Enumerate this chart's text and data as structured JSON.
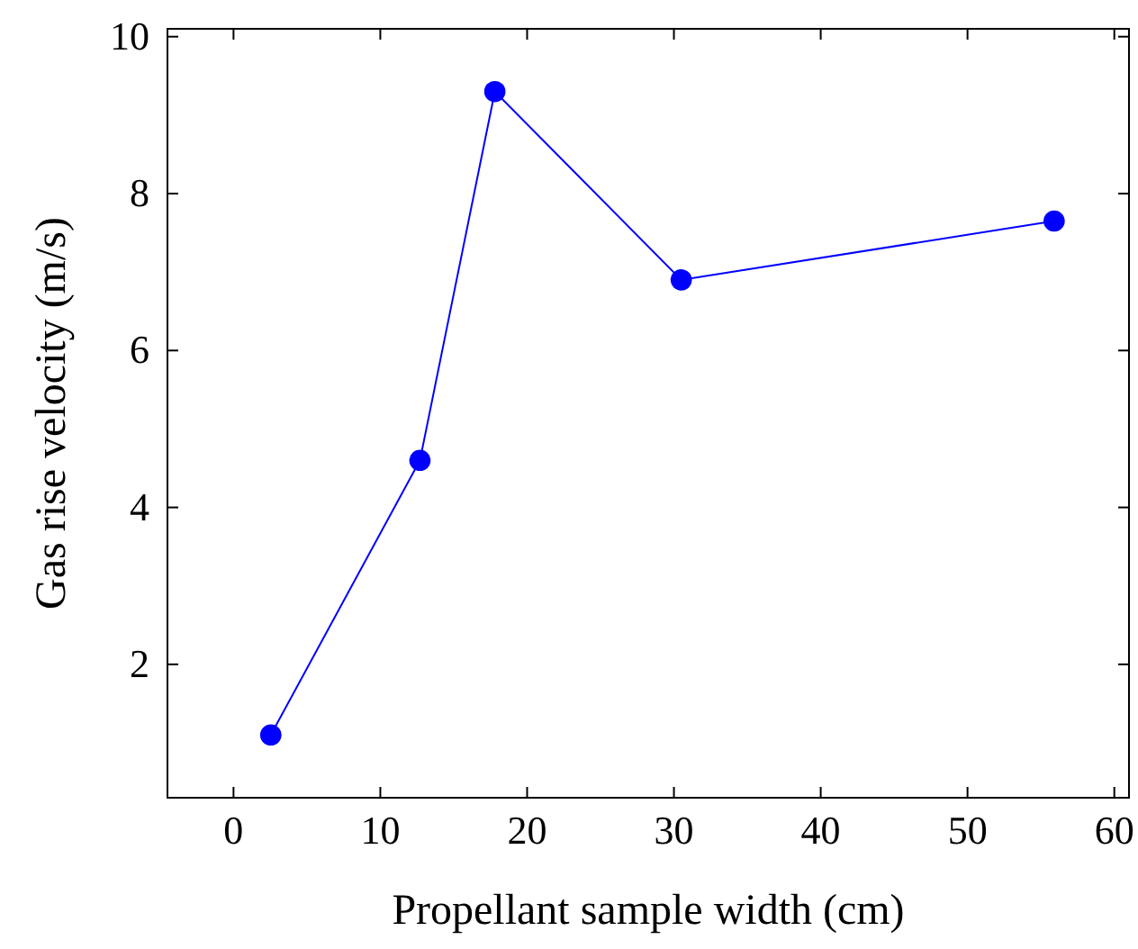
{
  "chart_data": {
    "type": "line",
    "xlabel": "Propellant sample width (cm)",
    "ylabel": "Gas rise velocity (m/s)",
    "xlim": [
      -4.5,
      61
    ],
    "xticks": [
      0,
      10,
      20,
      30,
      40,
      50,
      60
    ],
    "ylim": [
      0.3,
      10.1
    ],
    "yticks": [
      2,
      4,
      6,
      8,
      10
    ],
    "marker": "circle",
    "series": [
      {
        "color": "#0000ff",
        "x": [
          2.54,
          12.7,
          17.8,
          30.5,
          55.9
        ],
        "values": [
          1.1,
          4.6,
          9.3,
          6.9,
          7.65
        ]
      }
    ]
  }
}
